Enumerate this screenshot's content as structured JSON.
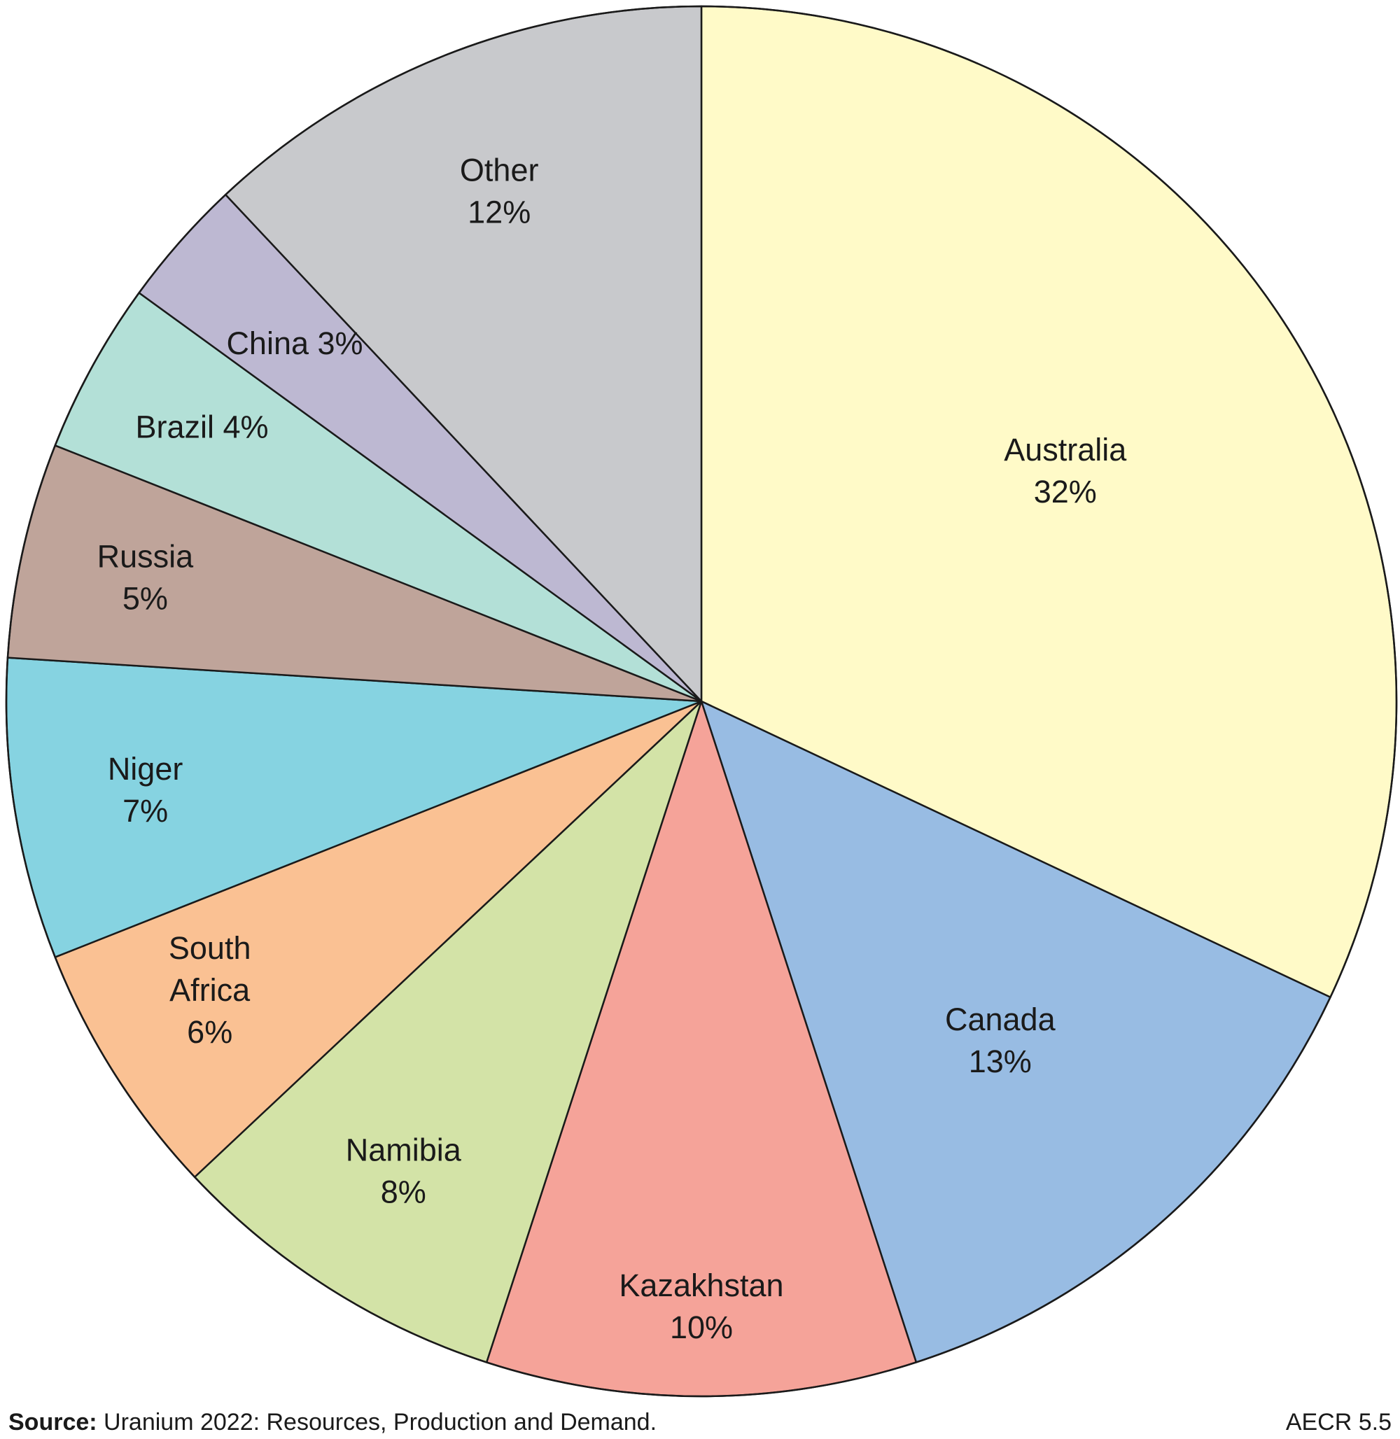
{
  "chart_data": {
    "type": "pie",
    "start": "12 o'clock, clockwise",
    "slices": [
      {
        "name": "Australia",
        "label_lines": [
          "Australia",
          "32%"
        ],
        "value": 32,
        "color": "#FFFAC8"
      },
      {
        "name": "Canada",
        "label_lines": [
          "Canada",
          "13%"
        ],
        "value": 13,
        "color": "#98BCE3"
      },
      {
        "name": "Kazakhstan",
        "label_lines": [
          "Kazakhstan",
          "10%"
        ],
        "value": 10,
        "color": "#F5A399"
      },
      {
        "name": "Namibia",
        "label_lines": [
          "Namibia",
          "8%"
        ],
        "value": 8,
        "color": "#D3E3A7"
      },
      {
        "name": "South Africa",
        "label_lines": [
          "South",
          "Africa",
          "6%"
        ],
        "value": 6,
        "color": "#FAC193"
      },
      {
        "name": "Niger",
        "label_lines": [
          "Niger",
          "7%"
        ],
        "value": 7,
        "color": "#86D3E1"
      },
      {
        "name": "Russia",
        "label_lines": [
          "Russia",
          "5%"
        ],
        "value": 5,
        "color": "#BFA49A"
      },
      {
        "name": "Brazil",
        "label_lines": [
          "Brazil 4%"
        ],
        "value": 4,
        "color": "#B3E0D7"
      },
      {
        "name": "China",
        "label_lines": [
          "China 3%"
        ],
        "value": 3,
        "color": "#BDB8D2"
      },
      {
        "name": "Other",
        "label_lines": [
          "Other",
          "12%"
        ],
        "value": 12,
        "color": "#C8C9CC"
      }
    ]
  },
  "footer": {
    "source_prefix": "Source:",
    "source_text": " Uranium 2022: Resources, Production and Demand.",
    "figure_id": "AECR 5.5"
  }
}
